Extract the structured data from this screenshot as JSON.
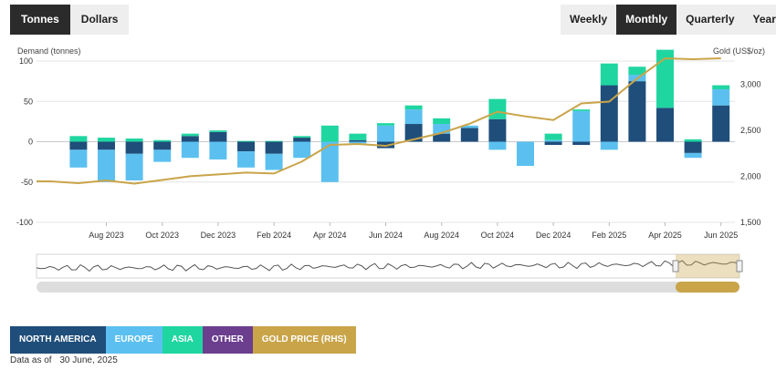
{
  "unit_toggle": {
    "options": [
      "Tonnes",
      "Dollars"
    ],
    "active": "Tonnes"
  },
  "period_toggle": {
    "options": [
      "Weekly",
      "Monthly",
      "Quarterly",
      "Yearly"
    ],
    "active": "Monthly"
  },
  "colors": {
    "north_america": "#1f4e7a",
    "europe": "#5bc0f0",
    "asia": "#1fd6a0",
    "other": "#6b3e8e",
    "gold_price": "#c9a449"
  },
  "legend": [
    {
      "label": "NORTH AMERICA",
      "color": "#1f4e7a"
    },
    {
      "label": "EUROPE",
      "color": "#5bc0f0"
    },
    {
      "label": "ASIA",
      "color": "#1fd6a0"
    },
    {
      "label": "OTHER",
      "color": "#6b3e8e"
    },
    {
      "label": "GOLD PRICE (RHS)",
      "color": "#c9a449"
    }
  ],
  "footer": {
    "prefix": "Data as of",
    "date": "30 June, 2025"
  },
  "chart_data": {
    "type": "bar",
    "stacked": true,
    "title": "",
    "ylabel": "Demand (tonnes)",
    "y2label": "Gold (US$/oz)",
    "ylim": [
      -100,
      100
    ],
    "y2lim": [
      1500,
      3250
    ],
    "yticks": [
      -100,
      -50,
      0,
      50,
      100
    ],
    "y2ticks": [
      1500,
      2000,
      2500,
      3000
    ],
    "y2tick_labels": [
      "1,500",
      "2,000",
      "2,500",
      "3,000"
    ],
    "categories": [
      "Jun 2023",
      "Jul 2023",
      "Aug 2023",
      "Sep 2023",
      "Oct 2023",
      "Nov 2023",
      "Dec 2023",
      "Jan 2024",
      "Feb 2024",
      "Mar 2024",
      "Apr 2024",
      "May 2024",
      "Jun 2024",
      "Jul 2024",
      "Aug 2024",
      "Sep 2024",
      "Oct 2024",
      "Nov 2024",
      "Dec 2024",
      "Jan 2025",
      "Feb 2025",
      "Mar 2025",
      "Apr 2025",
      "May 2025",
      "Jun 2025"
    ],
    "x_tick_labels": [
      "Aug 2023",
      "Oct 2023",
      "Dec 2023",
      "Feb 2024",
      "Apr 2024",
      "Jun 2024",
      "Aug 2024",
      "Oct 2024",
      "Dec 2024",
      "Feb 2025",
      "Apr 2025",
      "Jun 2025"
    ],
    "series": [
      {
        "name": "NORTH AMERICA",
        "values": [
          0,
          -10,
          -10,
          -15,
          -10,
          7,
          12,
          -12,
          -15,
          5,
          0,
          2,
          -8,
          22,
          10,
          17,
          28,
          0,
          -4,
          -4,
          70,
          75,
          42,
          -14,
          45
        ]
      },
      {
        "name": "EUROPE",
        "values": [
          0,
          -22,
          -40,
          -33,
          -15,
          -20,
          -22,
          -20,
          -20,
          -20,
          -50,
          -2,
          20,
          18,
          12,
          3,
          -10,
          -30,
          2,
          38,
          -10,
          8,
          0,
          -6,
          20
        ]
      },
      {
        "name": "ASIA",
        "values": [
          0,
          7,
          5,
          4,
          2,
          3,
          2,
          1,
          1,
          2,
          20,
          8,
          3,
          5,
          7,
          0,
          25,
          0,
          8,
          2,
          27,
          10,
          72,
          3,
          5
        ]
      },
      {
        "name": "OTHER",
        "values": [
          0,
          0,
          0,
          0,
          0,
          0,
          0,
          0,
          0,
          0,
          0,
          0,
          0,
          0,
          0,
          0,
          0,
          0,
          0,
          0,
          0,
          0,
          0,
          0,
          0
        ]
      },
      {
        "name": "GOLD PRICE (RHS)",
        "type": "line",
        "axis": "right",
        "values": [
          1945,
          1925,
          1955,
          1920,
          1960,
          2000,
          2020,
          2040,
          2030,
          2160,
          2340,
          2350,
          2330,
          2400,
          2470,
          2570,
          2700,
          2650,
          2610,
          2790,
          2810,
          3060,
          3280,
          3270,
          3280
        ]
      }
    ],
    "navigator": {
      "selected_range": [
        "Jun 2023",
        "Jun 2025"
      ]
    },
    "legend_position": "bottom-left",
    "grid": true
  }
}
